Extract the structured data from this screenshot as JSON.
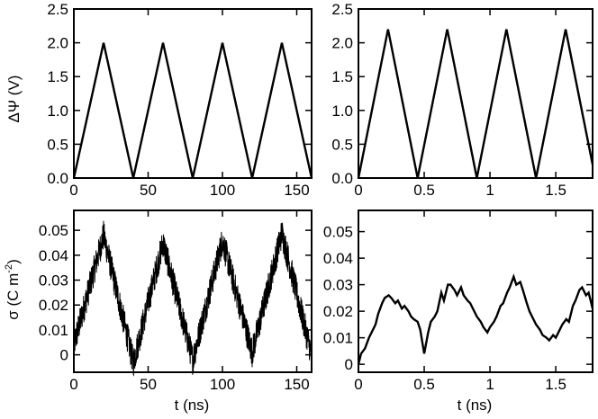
{
  "chart_data": [
    {
      "panel": "top-left",
      "type": "line",
      "xlabel": "",
      "ylabel": "ΔΨ (V)",
      "xlim": [
        0,
        160
      ],
      "ylim": [
        0,
        2.5
      ],
      "xticks": [
        0,
        50,
        100,
        150
      ],
      "xtick_labels": [
        "0",
        "50",
        "100",
        "150"
      ],
      "yticks": [
        0,
        0.5,
        1.0,
        1.5,
        2.0,
        2.5
      ],
      "ytick_labels": [
        "0.0",
        "0.5",
        "1.0",
        "1.5",
        "2.0",
        "2.5"
      ],
      "series": [
        {
          "x": [
            0,
            20,
            40,
            60,
            80,
            100,
            120,
            140,
            160
          ],
          "y": [
            0,
            2.0,
            0,
            2.0,
            0,
            2.0,
            0,
            2.0,
            0
          ]
        }
      ]
    },
    {
      "panel": "top-right",
      "type": "line",
      "xlabel": "",
      "ylabel": "",
      "xlim": [
        0,
        1.78
      ],
      "ylim": [
        0,
        2.5
      ],
      "xticks": [
        0,
        0.5,
        1,
        1.5
      ],
      "xtick_labels": [
        "0",
        "0.5",
        "1",
        "1.5"
      ],
      "yticks": [
        0,
        0.5,
        1.0,
        1.5,
        2.0,
        2.5
      ],
      "ytick_labels": [
        "0.0",
        "0.5",
        "1.0",
        "1.5",
        "2.0",
        "2.5"
      ],
      "series": [
        {
          "x": [
            0,
            0.225,
            0.45,
            0.675,
            0.9,
            1.125,
            1.35,
            1.575,
            1.78
          ],
          "y": [
            0,
            2.2,
            0,
            2.2,
            0,
            2.2,
            0,
            2.2,
            0.2
          ]
        }
      ]
    },
    {
      "panel": "bottom-left",
      "type": "line",
      "xlabel": "t (ns)",
      "ylabel": "σ (C m-2)",
      "xlim": [
        0,
        160
      ],
      "ylim": [
        -0.007,
        0.058
      ],
      "xticks": [
        0,
        50,
        100,
        150
      ],
      "xtick_labels": [
        "0",
        "50",
        "100",
        "150"
      ],
      "yticks": [
        0,
        0.01,
        0.02,
        0.03,
        0.04,
        0.05
      ],
      "ytick_labels": [
        "0",
        "0.01",
        "0.02",
        "0.03",
        "0.04",
        "0.05"
      ],
      "noise_amplitude": 0.006,
      "series": [
        {
          "x": [
            0,
            20,
            40,
            60,
            80,
            100,
            120,
            140,
            160
          ],
          "y": [
            0.004,
            0.048,
            -0.003,
            0.045,
            -0.002,
            0.046,
            0.001,
            0.049,
            0.0
          ]
        }
      ]
    },
    {
      "panel": "bottom-right",
      "type": "line",
      "xlabel": "t (ns)",
      "ylabel": "",
      "xlim": [
        0,
        1.78
      ],
      "ylim": [
        -0.003,
        0.058
      ],
      "xticks": [
        0,
        0.5,
        1,
        1.5
      ],
      "xtick_labels": [
        "0",
        "0.5",
        "1",
        "1.5"
      ],
      "yticks": [
        0,
        0.01,
        0.02,
        0.03,
        0.04,
        0.05
      ],
      "ytick_labels": [
        "0",
        "0.01",
        "0.02",
        "0.03",
        "0.04",
        "0.05"
      ],
      "series": [
        {
          "x": [
            0,
            0.02,
            0.05,
            0.08,
            0.1,
            0.13,
            0.15,
            0.18,
            0.2,
            0.23,
            0.25,
            0.28,
            0.3,
            0.33,
            0.35,
            0.38,
            0.4,
            0.42,
            0.45,
            0.47,
            0.5,
            0.53,
            0.55,
            0.58,
            0.6,
            0.63,
            0.65,
            0.68,
            0.7,
            0.73,
            0.75,
            0.78,
            0.8,
            0.83,
            0.85,
            0.88,
            0.9,
            0.93,
            0.95,
            0.98,
            1.0,
            1.03,
            1.05,
            1.08,
            1.1,
            1.13,
            1.15,
            1.18,
            1.2,
            1.23,
            1.25,
            1.28,
            1.3,
            1.33,
            1.35,
            1.38,
            1.4,
            1.43,
            1.45,
            1.48,
            1.5,
            1.53,
            1.55,
            1.58,
            1.6,
            1.63,
            1.65,
            1.68,
            1.7,
            1.73,
            1.75,
            1.78
          ],
          "y": [
            0.0,
            0.004,
            0.006,
            0.01,
            0.012,
            0.015,
            0.019,
            0.023,
            0.025,
            0.026,
            0.025,
            0.023,
            0.024,
            0.021,
            0.022,
            0.02,
            0.018,
            0.017,
            0.016,
            0.013,
            0.004,
            0.012,
            0.016,
            0.018,
            0.02,
            0.027,
            0.024,
            0.03,
            0.03,
            0.028,
            0.026,
            0.029,
            0.026,
            0.024,
            0.023,
            0.02,
            0.018,
            0.016,
            0.014,
            0.012,
            0.014,
            0.016,
            0.018,
            0.022,
            0.023,
            0.027,
            0.029,
            0.033,
            0.03,
            0.031,
            0.028,
            0.023,
            0.02,
            0.017,
            0.015,
            0.013,
            0.011,
            0.01,
            0.009,
            0.011,
            0.01,
            0.013,
            0.015,
            0.017,
            0.016,
            0.022,
            0.024,
            0.028,
            0.029,
            0.026,
            0.027,
            0.021
          ]
        }
      ]
    }
  ]
}
